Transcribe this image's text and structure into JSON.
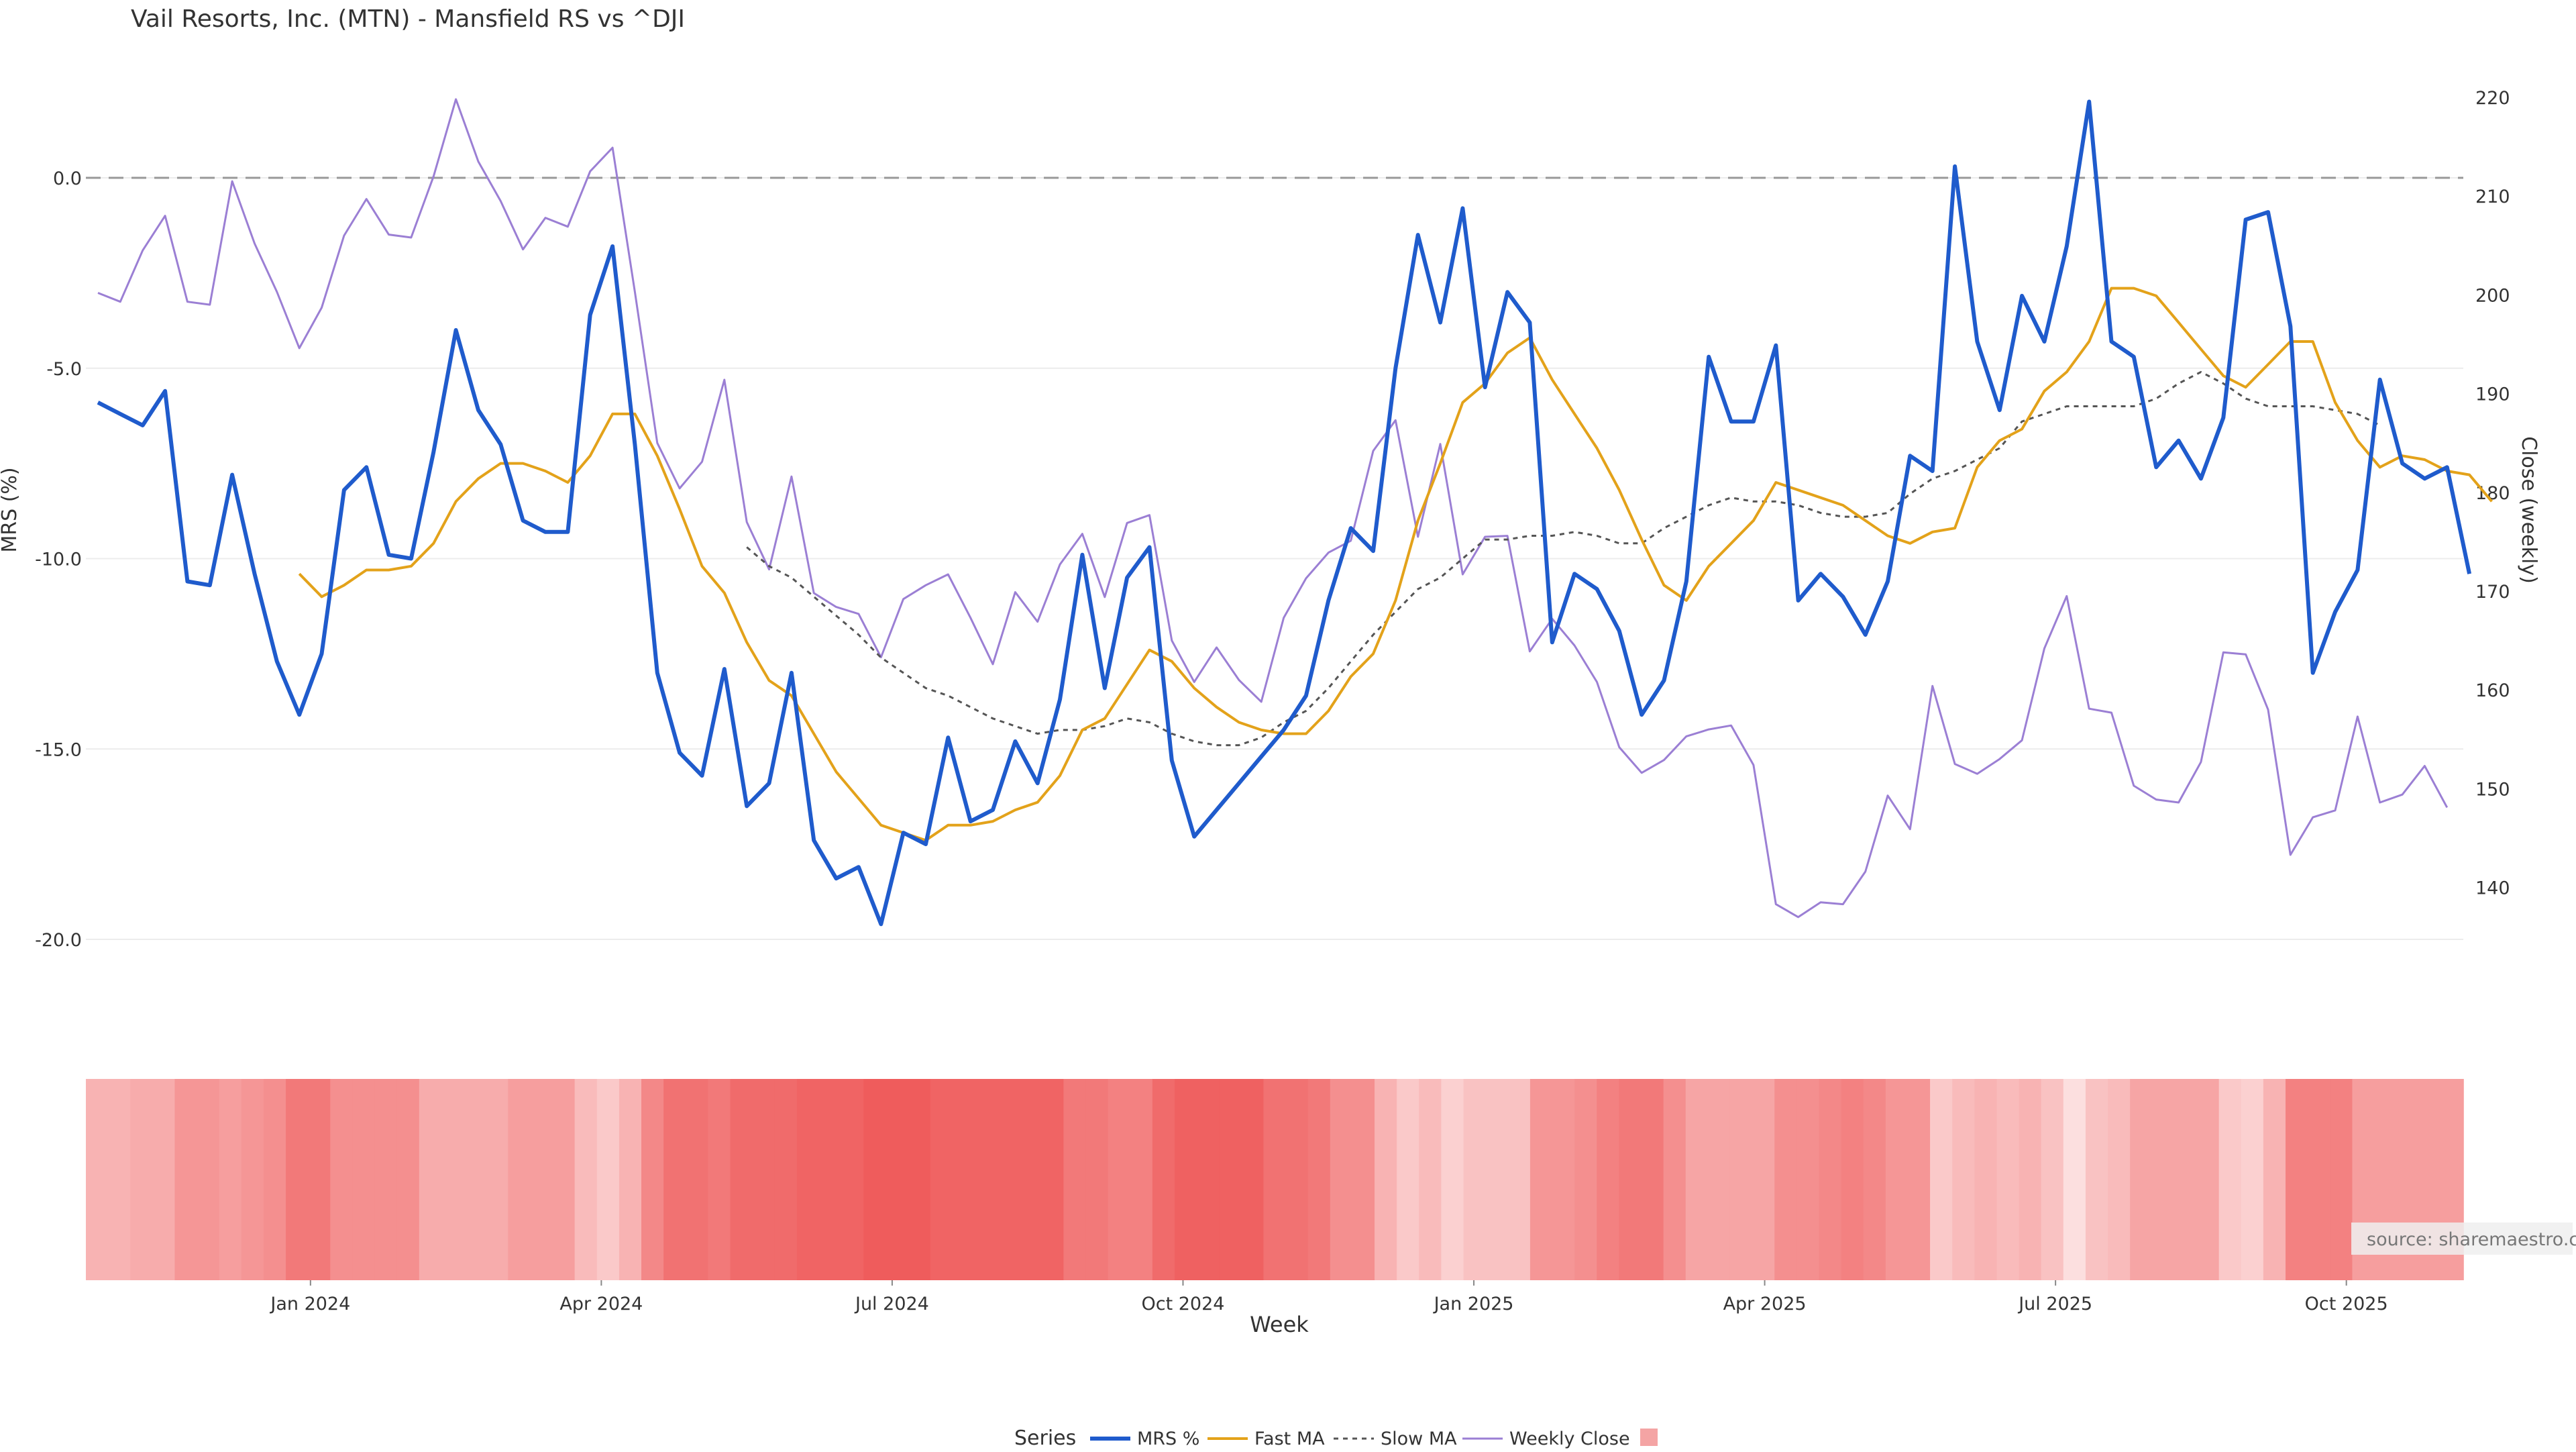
{
  "chart_data": {
    "type": "line",
    "title": "Vail Resorts, Inc. (MTN) - Mansfield RS vs ^DJI",
    "xlabel": "Week",
    "ylabel_left": "MRS (%)",
    "ylabel_right": "Close (weekly)",
    "ylim_left": [
      -22.5,
      2.5
    ],
    "ylim_right": [
      130,
      222
    ],
    "yticks_left": [
      "0.0",
      "-5.0",
      "-10.0",
      "-15.0",
      "-20.0"
    ],
    "yticks_right": [
      "220",
      "210",
      "200",
      "190",
      "180",
      "170",
      "160",
      "150",
      "140"
    ],
    "xtick_labels": [
      "Jan 2024",
      "Apr 2024",
      "Jul 2024",
      "Oct 2024",
      "Jan 2025",
      "Apr 2025",
      "Jul 2025",
      "Oct 2025"
    ],
    "xtick_weeks": [
      9.5,
      22.5,
      35.5,
      48.5,
      61.5,
      74.5,
      87.5,
      100.5
    ],
    "reference_line": 0.0,
    "source": "source: sharemaestro.com",
    "legend_title": "Series",
    "colors": {
      "mrs": "#1f5bcc",
      "fast": "#e3a21a",
      "slow": "#555555",
      "close": "#9b7fd4",
      "heat_min": "#fde6e6",
      "heat_max": "#ee5555",
      "grid": "#ececec",
      "zero_line": "#999999"
    },
    "series": [
      {
        "name": "MRS %",
        "key": "mrs",
        "axis": "left",
        "start": 0,
        "values": [
          -5.9,
          -6.2,
          -6.5,
          -5.6,
          -10.6,
          -10.7,
          -7.8,
          -10.4,
          -12.7,
          -14.1,
          -12.5,
          -8.2,
          -7.6,
          -9.9,
          -10.0,
          -7.2,
          -4.0,
          -6.1,
          -7.0,
          -9.0,
          -9.3,
          -9.3,
          -3.6,
          -1.8,
          -7.0,
          -13.0,
          -15.1,
          -15.7,
          -12.9,
          -16.5,
          -15.9,
          -13.0,
          -17.4,
          -18.4,
          -18.1,
          -19.6,
          -17.2,
          -17.5,
          -14.7,
          -16.9,
          -16.6,
          -14.8,
          -15.9,
          -13.7,
          -9.9,
          -13.4,
          -10.5,
          -9.7,
          -15.3,
          -17.3,
          -16.6,
          -15.9,
          -15.2,
          -14.5,
          -13.6,
          -11.1,
          -9.2,
          -9.8,
          -5.0,
          -1.5,
          -3.8,
          -0.8,
          -5.5,
          -3.0,
          -3.8,
          -12.2,
          -10.4,
          -10.8,
          -11.9,
          -14.1,
          -13.2,
          -10.6,
          -4.7,
          -6.4,
          -6.4,
          -4.4,
          -11.1,
          -10.4,
          -11.0,
          -12.0,
          -10.6,
          -7.3,
          -7.7,
          0.3,
          -4.3,
          -6.1,
          -3.1,
          -4.3,
          -1.8,
          2.0,
          -4.3,
          -4.7,
          -7.6,
          -6.9,
          -7.9,
          -6.3,
          -1.1,
          -0.9,
          -3.9,
          -13.0,
          -11.4,
          -10.3,
          -5.3,
          -7.5,
          -7.9,
          -7.6,
          -10.4
        ]
      },
      {
        "name": "Fast MA",
        "key": "fast",
        "axis": "left",
        "start": 9,
        "values": [
          -10.4,
          -11.0,
          -10.7,
          -10.3,
          -10.3,
          -10.2,
          -9.6,
          -8.5,
          -7.9,
          -7.5,
          -7.5,
          -7.7,
          -8.0,
          -7.3,
          -6.2,
          -6.2,
          -7.3,
          -8.7,
          -10.2,
          -10.9,
          -12.2,
          -13.2,
          -13.6,
          -14.6,
          -15.6,
          -16.3,
          -17.0,
          -17.2,
          -17.4,
          -17.0,
          -17.0,
          -16.9,
          -16.6,
          -16.4,
          -15.7,
          -14.5,
          -14.2,
          -13.3,
          -12.4,
          -12.7,
          -13.4,
          -13.9,
          -14.3,
          -14.5,
          -14.6,
          -14.6,
          -14.0,
          -13.1,
          -12.5,
          -11.1,
          -9.0,
          -7.5,
          -5.9,
          -5.4,
          -4.6,
          -4.2,
          -5.3,
          -6.2,
          -7.1,
          -8.2,
          -9.5,
          -10.7,
          -11.1,
          -10.2,
          -9.6,
          -9.0,
          -8.0,
          -8.2,
          -8.4,
          -8.6,
          -9.0,
          -9.4,
          -9.6,
          -9.3,
          -9.2,
          -7.6,
          -6.9,
          -6.6,
          -5.6,
          -5.1,
          -4.3,
          -2.9,
          -2.9,
          -3.1,
          -3.8,
          -4.5,
          -5.2,
          -5.5,
          -4.9,
          -4.3,
          -4.3,
          -5.9,
          -6.9,
          -7.6,
          -7.3,
          -7.4,
          -7.7,
          -7.8,
          -8.5
        ]
      },
      {
        "name": "Slow MA",
        "key": "slow",
        "axis": "left",
        "start": 29,
        "values": [
          -9.7,
          -10.2,
          -10.5,
          -11.0,
          -11.5,
          -12.0,
          -12.6,
          -13.0,
          -13.4,
          -13.6,
          -13.9,
          -14.2,
          -14.4,
          -14.6,
          -14.5,
          -14.5,
          -14.4,
          -14.2,
          -14.3,
          -14.6,
          -14.8,
          -14.9,
          -14.9,
          -14.7,
          -14.3,
          -14.0,
          -13.4,
          -12.7,
          -12.0,
          -11.4,
          -10.8,
          -10.5,
          -10.0,
          -9.5,
          -9.5,
          -9.4,
          -9.4,
          -9.3,
          -9.4,
          -9.6,
          -9.6,
          -9.2,
          -8.9,
          -8.6,
          -8.4,
          -8.5,
          -8.5,
          -8.6,
          -8.8,
          -8.9,
          -8.9,
          -8.8,
          -8.3,
          -7.9,
          -7.7,
          -7.4,
          -7.1,
          -6.4,
          -6.2,
          -6.0,
          -6.0,
          -6.0,
          -6.0,
          -5.8,
          -5.4,
          -5.1,
          -5.4,
          -5.8,
          -6.0,
          -6.0,
          -6.0,
          -6.1,
          -6.2,
          -6.5
        ]
      },
      {
        "name": "Weekly Close",
        "key": "close",
        "axis": "right",
        "start": 0,
        "values": [
          200.2,
          199.3,
          204.5,
          208.0,
          199.3,
          199.0,
          211.5,
          205.2,
          200.3,
          194.6,
          198.7,
          206.0,
          209.7,
          206.1,
          205.8,
          212.0,
          219.8,
          213.5,
          209.5,
          204.6,
          207.8,
          206.9,
          212.5,
          214.9,
          200.3,
          185.0,
          180.4,
          183.1,
          191.4,
          177.0,
          172.2,
          181.6,
          169.8,
          168.4,
          167.7,
          163.3,
          169.2,
          170.6,
          171.7,
          167.3,
          162.6,
          169.9,
          166.9,
          172.7,
          175.8,
          169.4,
          176.9,
          177.7,
          165.0,
          160.8,
          164.3,
          161.0,
          158.8,
          167.3,
          171.3,
          173.9,
          175.1,
          184.2,
          187.3,
          175.5,
          184.9,
          171.7,
          175.5,
          175.6,
          163.9,
          167.2,
          164.5,
          160.8,
          154.2,
          151.6,
          152.9,
          155.3,
          156.0,
          156.4,
          152.4,
          138.3,
          137.0,
          138.5,
          138.3,
          141.6,
          149.3,
          145.9,
          160.4,
          152.5,
          151.5,
          153.0,
          154.9,
          164.2,
          169.5,
          158.1,
          157.7,
          150.3,
          148.9,
          148.6,
          152.7,
          163.8,
          163.6,
          158.0,
          143.3,
          147.1,
          147.8,
          157.3,
          148.6,
          149.4,
          152.3,
          148.1
        ]
      }
    ],
    "heatmap_intensity": [
      0.35,
      0.35,
      0.4,
      0.4,
      0.55,
      0.55,
      0.5,
      0.55,
      0.6,
      0.75,
      0.75,
      0.6,
      0.6,
      0.6,
      0.6,
      0.4,
      0.4,
      0.4,
      0.4,
      0.5,
      0.5,
      0.5,
      0.3,
      0.2,
      0.35,
      0.65,
      0.8,
      0.8,
      0.75,
      0.85,
      0.85,
      0.85,
      0.9,
      0.9,
      0.9,
      0.95,
      0.95,
      0.95,
      0.9,
      0.9,
      0.9,
      0.9,
      0.9,
      0.9,
      0.75,
      0.75,
      0.7,
      0.7,
      0.85,
      0.92,
      0.92,
      0.92,
      0.92,
      0.8,
      0.8,
      0.75,
      0.6,
      0.6,
      0.35,
      0.2,
      0.3,
      0.15,
      0.25,
      0.25,
      0.25,
      0.55,
      0.55,
      0.6,
      0.7,
      0.75,
      0.75,
      0.6,
      0.45,
      0.45,
      0.45,
      0.45,
      0.6,
      0.6,
      0.65,
      0.7,
      0.65,
      0.55,
      0.55,
      0.2,
      0.3,
      0.35,
      0.3,
      0.35,
      0.25,
      0.05,
      0.25,
      0.3,
      0.45,
      0.45,
      0.45,
      0.45,
      0.2,
      0.15,
      0.35,
      0.7,
      0.7,
      0.7,
      0.5,
      0.5,
      0.5,
      0.5,
      0.5
    ]
  }
}
